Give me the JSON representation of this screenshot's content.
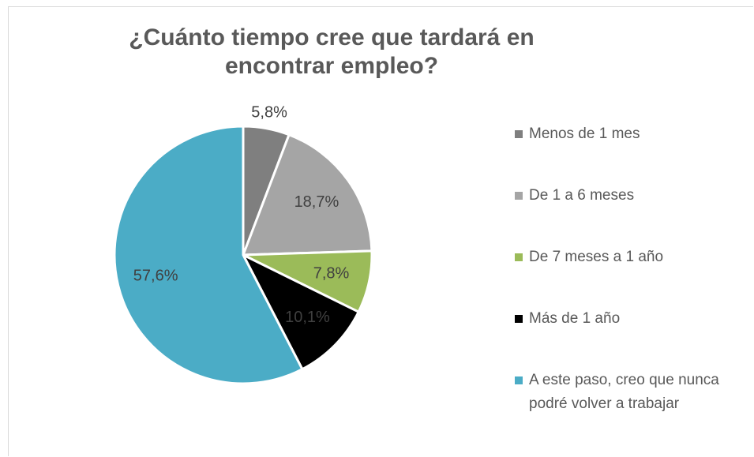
{
  "chart_data": {
    "type": "pie",
    "title": "¿Cuánto tiempo cree que tardará en encontrar empleo?",
    "categories": [
      "Menos de 1 mes",
      "De 1 a 6 meses",
      "De 7 meses a 1 año",
      "Más de 1 año",
      "A este paso, creo que nunca podré volver a trabajar"
    ],
    "values": [
      5.8,
      18.7,
      7.8,
      10.1,
      57.6
    ],
    "value_labels": [
      "5,8%",
      "18,7%",
      "7,8%",
      "10,1%",
      "57,6%"
    ],
    "colors": [
      "#7f7f7f",
      "#a5a5a5",
      "#9bbb59",
      "#000000",
      "#4bacc6"
    ],
    "legend": "right"
  }
}
